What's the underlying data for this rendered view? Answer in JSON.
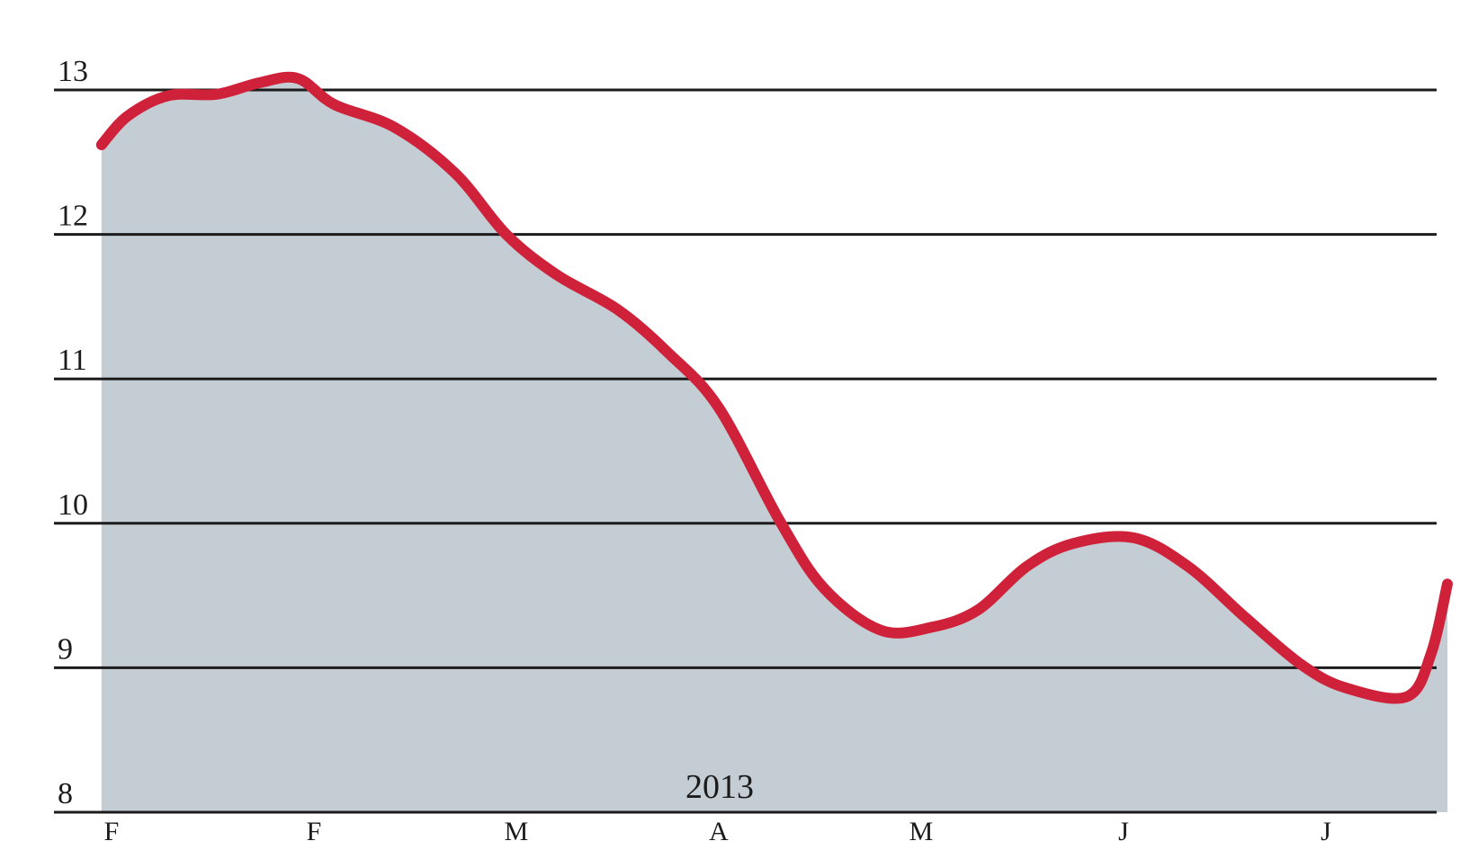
{
  "chart_data": {
    "type": "area",
    "title": "",
    "xlabel": "",
    "ylabel": "",
    "year_label": "2013",
    "ylim": [
      8,
      13.2
    ],
    "y_ticks": [
      "13",
      "12",
      "11",
      "10",
      "9",
      "8"
    ],
    "y_tick_values": [
      13,
      12,
      11,
      10,
      9,
      8
    ],
    "x_ticks": [
      "F",
      "F",
      "M",
      "A",
      "M",
      "J",
      "J"
    ],
    "x_tick_values": [
      0,
      1,
      2,
      3,
      4,
      5,
      6
    ],
    "xlim": [
      -0.05,
      6.6
    ],
    "grid": true,
    "series": [
      {
        "x": [
          -0.05,
          0.08,
          0.28,
          0.52,
          0.73,
          0.92,
          1.1,
          1.4,
          1.7,
          1.95,
          2.2,
          2.5,
          2.75,
          3.0,
          3.3,
          3.52,
          3.8,
          4.05,
          4.28,
          4.52,
          4.75,
          5.05,
          5.32,
          5.6,
          5.88,
          6.1,
          6.4,
          6.52,
          6.6
        ],
        "values": [
          12.62,
          12.82,
          12.96,
          12.97,
          13.05,
          13.08,
          12.9,
          12.74,
          12.42,
          12.0,
          11.72,
          11.48,
          11.18,
          10.8,
          10.02,
          9.55,
          9.26,
          9.28,
          9.4,
          9.7,
          9.86,
          9.9,
          9.7,
          9.35,
          9.02,
          8.86,
          8.8,
          9.1,
          9.58
        ]
      }
    ],
    "colors": {
      "line": "#d0213a",
      "area": "#c4ccd4",
      "grid": "#1c1c1c",
      "background": "#ffffff"
    }
  }
}
